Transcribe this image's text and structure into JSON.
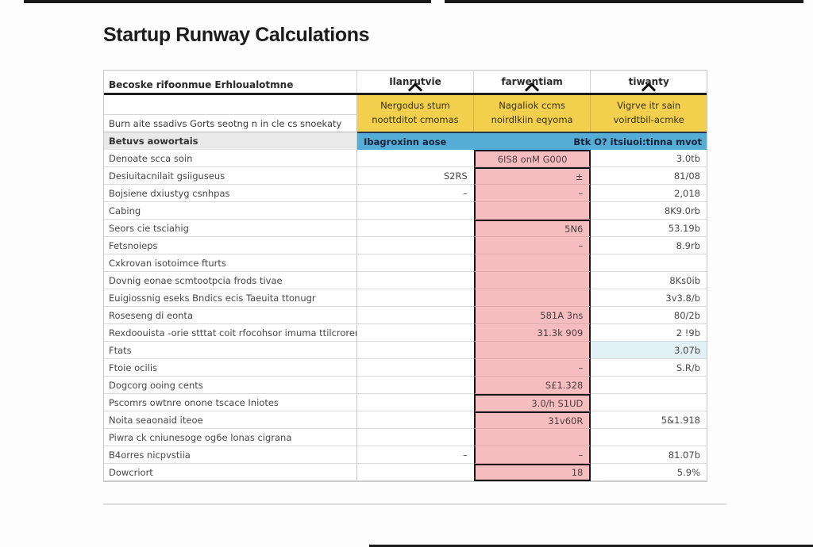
{
  "page": {
    "title": "Startup Runway Calculations"
  },
  "colors": {
    "yellow": "#F2CF4D",
    "blue": "#55ADD6",
    "pink": "#F6BDC0",
    "paleblue": "#E2F1F6",
    "grayrow": "#E9E9E9"
  },
  "table": {
    "row_header": "Becoske rifoonmue Erhloualotmne",
    "columns": [
      {
        "label": "Ilanrutvie"
      },
      {
        "label": "farwentiam"
      },
      {
        "label": "tiwanty"
      }
    ],
    "yellow_band": {
      "col1": [
        "Nergodus stum",
        "noottditot cmomas"
      ],
      "col2": [
        "Nagaliok ccms",
        "noirdlkiin eqyoma"
      ],
      "col3": [
        "Vigrve itr sain",
        "voirdtbil-acmke"
      ]
    },
    "left_subrow_label": "Burn aite ssadivs Gorts seotng n in cle cs snoekaty",
    "blue_band": {
      "row_label": "Betuvs aowortais",
      "left_text": "Ibagroxinn aose",
      "right_text": "Btk O? itsiuoi:tinna mvot"
    },
    "rows": [
      {
        "label": "Denoate scca soin",
        "c2": "",
        "c3": "6IS8 onM G000",
        "c3_center": true,
        "c4": "3.0tb",
        "frame_top": true,
        "frame_bottom": false,
        "c4_blue": false
      },
      {
        "label": "Desiuitacnilait gsiiguseus",
        "c2": "S2RS",
        "c3": "±",
        "c3_center": false,
        "c4": "81/08",
        "frame_top": true,
        "frame_bottom": false,
        "c4_blue": false
      },
      {
        "label": "Bojsiene dxiustyg csnhpas",
        "c2": "–",
        "c3": "–",
        "c3_center": false,
        "c4": "2,018",
        "frame_top": false,
        "frame_bottom": false,
        "c4_blue": false
      },
      {
        "label": "Cabing",
        "c2": "",
        "c3": "",
        "c3_center": false,
        "c4": "8K9.0rb",
        "frame_top": false,
        "frame_bottom": false,
        "c4_blue": false
      },
      {
        "label": "Seors cie tsciahig",
        "c2": "",
        "c3": "5N6",
        "c3_center": false,
        "c4": "53.19b",
        "frame_top": true,
        "frame_bottom": false,
        "c4_blue": false
      },
      {
        "label": "Fetsnoieps",
        "c2": "",
        "c3": "–",
        "c3_center": false,
        "c4": "8.9rb",
        "frame_top": false,
        "frame_bottom": false,
        "c4_blue": false
      },
      {
        "label": "Cxkrovan isotoimce fturts",
        "c2": "",
        "c3": "",
        "c3_center": false,
        "c4": "",
        "frame_top": false,
        "frame_bottom": false,
        "c4_blue": false
      },
      {
        "label": "Dovnig eonae scmtootpcia frods tivae",
        "c2": "",
        "c3": "",
        "c3_center": false,
        "c4": "8Ks0ib",
        "frame_top": false,
        "frame_bottom": false,
        "c4_blue": false
      },
      {
        "label": "Euigiossnig eseks Bndics ecis Taeuita ttonugr",
        "c2": "",
        "c3": "",
        "c3_center": false,
        "c4": "3v3.8/b",
        "frame_top": false,
        "frame_bottom": false,
        "c4_blue": false
      },
      {
        "label": "Roseseng di eonta",
        "c2": "",
        "c3": "581A 3ns",
        "c3_center": false,
        "c4": "80/2b",
        "frame_top": false,
        "frame_bottom": false,
        "c4_blue": false
      },
      {
        "label": "Rexdoouista -orie stttat coit rfocohsor imuma ttilcrorer",
        "c2": "",
        "c3": "31.3k 909",
        "c3_center": false,
        "c4": "2 !9b",
        "frame_top": false,
        "frame_bottom": false,
        "c4_blue": false
      },
      {
        "label": "Ftats",
        "c2": "",
        "c3": "",
        "c3_center": false,
        "c4": "3.07b",
        "frame_top": false,
        "frame_bottom": false,
        "c4_blue": true
      },
      {
        "label": "Ftoie ocilis",
        "c2": "",
        "c3": "–",
        "c3_center": false,
        "c4": "S.R/b",
        "frame_top": false,
        "frame_bottom": false,
        "c4_blue": false
      },
      {
        "label": "Dogcorg ooing cents",
        "c2": "",
        "c3": "S£1.328",
        "c3_center": false,
        "c4": "",
        "frame_top": false,
        "frame_bottom": false,
        "c4_blue": false
      },
      {
        "label": "Pscomrs owtnre onone tscace Iniotes",
        "c2": "",
        "c3": "3.0/h S1UD",
        "c3_center": false,
        "c4": "",
        "frame_top": true,
        "frame_bottom": false,
        "c4_blue": false
      },
      {
        "label": "Noita seaonaid iteoe",
        "c2": "",
        "c3": "31v60R",
        "c3_center": false,
        "c4": "5&1.918",
        "frame_top": true,
        "frame_bottom": false,
        "c4_blue": false
      },
      {
        "label": "Piwra ck cniunesoge og6e lonas cigrana",
        "c2": "",
        "c3": "",
        "c3_center": false,
        "c4": "",
        "frame_top": false,
        "frame_bottom": false,
        "c4_blue": false
      },
      {
        "label": "B4orres nicpvstiia",
        "c2": "–",
        "c3": "–",
        "c3_center": false,
        "c4": "81.07b",
        "frame_top": false,
        "frame_bottom": false,
        "c4_blue": false
      },
      {
        "label": "Dowcriort",
        "c2": "",
        "c3": "18",
        "c3_center": false,
        "c4": "5.9%",
        "frame_top": true,
        "frame_bottom": true,
        "c4_blue": false
      }
    ]
  }
}
